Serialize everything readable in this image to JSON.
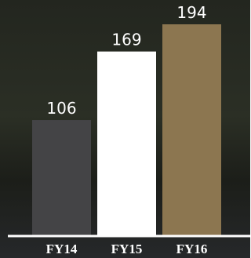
{
  "chart_data": {
    "type": "bar",
    "categories": [
      "FY14",
      "FY15",
      "FY16"
    ],
    "values": [
      106,
      169,
      194
    ],
    "colors": [
      "#444446",
      "#ffffff",
      "#8c7650"
    ]
  }
}
